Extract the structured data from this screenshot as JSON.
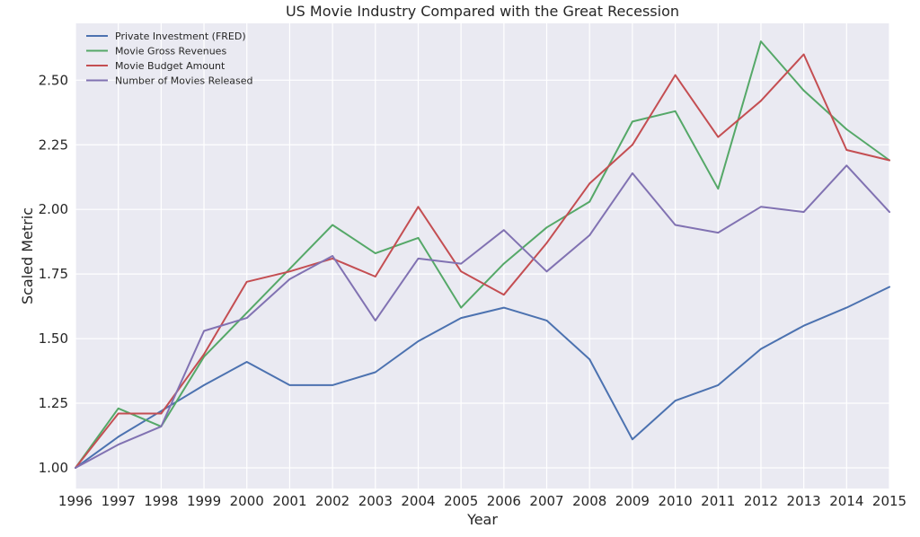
{
  "chart_data": {
    "type": "line",
    "title": "US Movie Industry Compared with the Great Recession",
    "xlabel": "Year",
    "ylabel": "Scaled Metric",
    "x": [
      1996,
      1997,
      1998,
      1999,
      2000,
      2001,
      2002,
      2003,
      2004,
      2005,
      2006,
      2007,
      2008,
      2009,
      2010,
      2011,
      2012,
      2013,
      2014,
      2015
    ],
    "xlim": [
      1996,
      2015
    ],
    "ylim": [
      0.92,
      2.72
    ],
    "yticks": [
      "1.00",
      "1.25",
      "1.50",
      "1.75",
      "2.00",
      "2.25",
      "2.50"
    ],
    "xticks": [
      "1996",
      "1997",
      "1998",
      "1999",
      "2000",
      "2001",
      "2002",
      "2003",
      "2004",
      "2005",
      "2006",
      "2007",
      "2008",
      "2009",
      "2010",
      "2011",
      "2012",
      "2013",
      "2014",
      "2015"
    ],
    "grid": true,
    "legend_position": "top-left",
    "series": [
      {
        "name": "Private Investment (FRED)",
        "color": "#4c72b0",
        "values": [
          1.0,
          1.12,
          1.22,
          1.32,
          1.41,
          1.32,
          1.32,
          1.37,
          1.49,
          1.58,
          1.62,
          1.57,
          1.42,
          1.11,
          1.26,
          1.32,
          1.46,
          1.55,
          1.62,
          1.7
        ]
      },
      {
        "name": "Movie Gross Revenues",
        "color": "#55a868",
        "values": [
          1.0,
          1.23,
          1.16,
          1.43,
          1.6,
          1.77,
          1.94,
          1.83,
          1.89,
          1.62,
          1.79,
          1.93,
          2.03,
          2.34,
          2.38,
          2.08,
          2.65,
          2.46,
          2.31,
          2.19
        ]
      },
      {
        "name": "Movie Budget Amount",
        "color": "#c44e52",
        "values": [
          1.0,
          1.21,
          1.21,
          1.44,
          1.72,
          1.76,
          1.81,
          1.74,
          2.01,
          1.76,
          1.67,
          1.87,
          2.1,
          2.25,
          2.52,
          2.28,
          2.42,
          2.6,
          2.23,
          2.19
        ]
      },
      {
        "name": "Number of Movies Released",
        "color": "#8172b2",
        "values": [
          1.0,
          1.09,
          1.16,
          1.53,
          1.58,
          1.73,
          1.82,
          1.57,
          1.81,
          1.79,
          1.92,
          1.76,
          1.9,
          2.14,
          1.94,
          1.91,
          2.01,
          1.99,
          2.17,
          1.99
        ]
      }
    ]
  }
}
